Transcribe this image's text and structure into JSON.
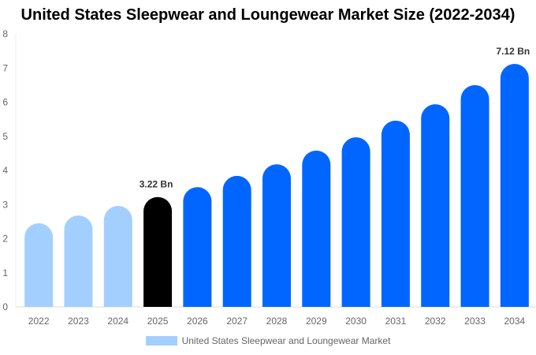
{
  "chart_data": {
    "type": "bar",
    "title": "United States Sleepwear and Loungewear Market Size (2022-2034)",
    "categories": [
      "2022",
      "2023",
      "2024",
      "2025",
      "2026",
      "2027",
      "2028",
      "2029",
      "2030",
      "2031",
      "2032",
      "2033",
      "2034"
    ],
    "series": [
      {
        "name": "United States Sleepwear and Loungewear Market",
        "values": [
          2.45,
          2.68,
          2.96,
          3.22,
          3.51,
          3.84,
          4.18,
          4.58,
          4.97,
          5.46,
          5.94,
          6.5,
          7.12
        ]
      }
    ],
    "data_labels": {
      "3": "3.22 Bn",
      "12": "7.12 Bn"
    },
    "ylim": [
      0,
      8
    ],
    "yticks": [
      0,
      1,
      2,
      3,
      4,
      5,
      6,
      7,
      8
    ],
    "grid": false,
    "legend": "bottom",
    "colors": {
      "historical": "#a3cfff",
      "current": "#000000",
      "forecast": "#0066ff"
    }
  }
}
